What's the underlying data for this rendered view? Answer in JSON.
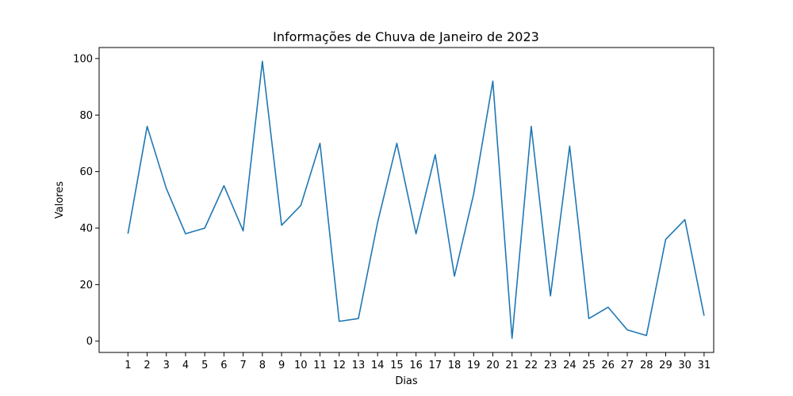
{
  "chart_data": {
    "type": "line",
    "title": "Informações de Chuva de Janeiro de 2023",
    "xlabel": "Dias",
    "ylabel": "Valores",
    "x": [
      1,
      2,
      3,
      4,
      5,
      6,
      7,
      8,
      9,
      10,
      11,
      12,
      13,
      14,
      15,
      16,
      17,
      18,
      19,
      20,
      21,
      22,
      23,
      24,
      25,
      26,
      27,
      28,
      29,
      30,
      31
    ],
    "series": [
      {
        "values": [
          38,
          76,
          54,
          38,
          40,
          55,
          39,
          99,
          41,
          48,
          70,
          7,
          8,
          42,
          70,
          38,
          66,
          23,
          52,
          92,
          1,
          76,
          16,
          69,
          8,
          12,
          4,
          2,
          36,
          43,
          9
        ],
        "color": "#1f77b4"
      }
    ],
    "xlim": [
      -0.5,
      31.5
    ],
    "ylim": [
      -4,
      103.9
    ],
    "yticks": [
      0,
      20,
      40,
      60,
      80,
      100
    ],
    "grid": false,
    "legend": "none"
  }
}
